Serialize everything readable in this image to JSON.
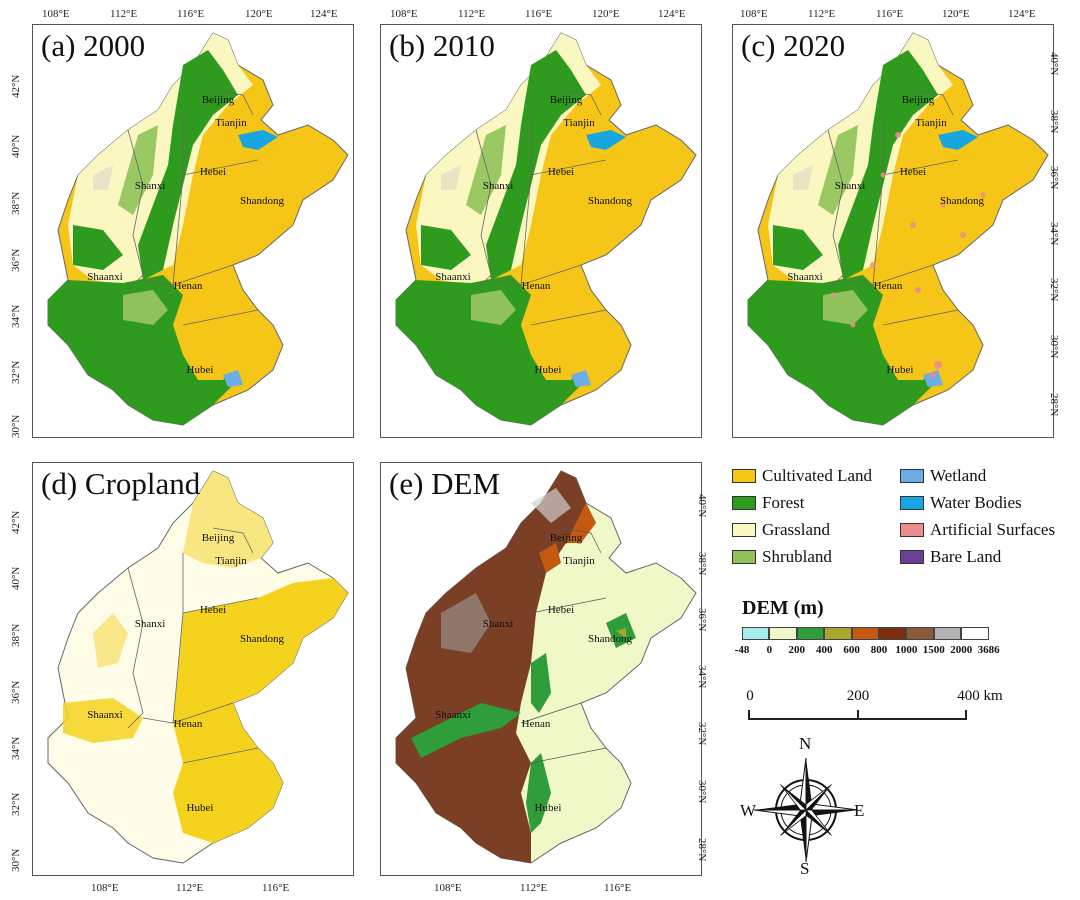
{
  "panels": [
    {
      "title": "(a) 2000",
      "top_ticks": [
        "108°E",
        "112°E",
        "116°E",
        "120°E",
        "124°E"
      ],
      "side_ticks": [
        "42°N",
        "40°N",
        "38°N",
        "36°N",
        "34°N",
        "32°N",
        "30°N"
      ]
    },
    {
      "title": "(b) 2010",
      "top_ticks": [
        "108°E",
        "112°E",
        "116°E",
        "120°E",
        "124°E"
      ],
      "side_ticks": []
    },
    {
      "title": "(c) 2020",
      "top_ticks": [
        "108°E",
        "112°E",
        "116°E",
        "120°E",
        "124°E"
      ],
      "side_ticks": [
        "40°N",
        "38°N",
        "36°N",
        "34°N",
        "32°N",
        "30°N",
        "28°N"
      ]
    },
    {
      "title": "(d) Cropland",
      "bottom_ticks": [
        "108°E",
        "112°E",
        "116°E"
      ],
      "side_ticks": [
        "42°N",
        "40°N",
        "38°N",
        "36°N",
        "34°N",
        "32°N",
        "30°N"
      ]
    },
    {
      "title": "(e) DEM",
      "bottom_ticks": [
        "108°E",
        "112°E",
        "116°E"
      ],
      "side_ticks": [
        "40°N",
        "38°N",
        "36°N",
        "34°N",
        "32°N",
        "30°N",
        "28°N"
      ]
    }
  ],
  "provinces": [
    "Beijing",
    "Tianjin",
    "Hebei",
    "Shanxi",
    "Shandong",
    "Shaanxi",
    "Henan",
    "Hubei"
  ],
  "landcover_legend": [
    {
      "label": "Cultivated Land",
      "color": "#f5c518"
    },
    {
      "label": "Wetland",
      "color": "#6aaee8"
    },
    {
      "label": "Forest",
      "color": "#2e9a1e"
    },
    {
      "label": "Water Bodies",
      "color": "#19a6e0"
    },
    {
      "label": "Grassland",
      "color": "#fbf7c0"
    },
    {
      "label": "Artificial Surfaces",
      "color": "#ee8c8c"
    },
    {
      "label": "Shrubland",
      "color": "#8fc35a"
    },
    {
      "label": "Bare Land",
      "color": "#6a3f94"
    }
  ],
  "dem_legend": {
    "title": "DEM (m)",
    "breaks": [
      "-48",
      "0",
      "200",
      "400",
      "600",
      "800",
      "1000",
      "1500",
      "2000",
      "3686"
    ],
    "colors": [
      "#a8ecec",
      "#f0f8c8",
      "#2f9e3a",
      "#a9a52f",
      "#c45a12",
      "#7c2d10",
      "#8a5a3c",
      "#b3b3b3",
      "#ffffff"
    ]
  },
  "scale_bar": {
    "labels": [
      "0",
      "200",
      "400 km"
    ]
  },
  "compass": {
    "n": "N",
    "s": "S",
    "e": "E",
    "w": "W"
  }
}
